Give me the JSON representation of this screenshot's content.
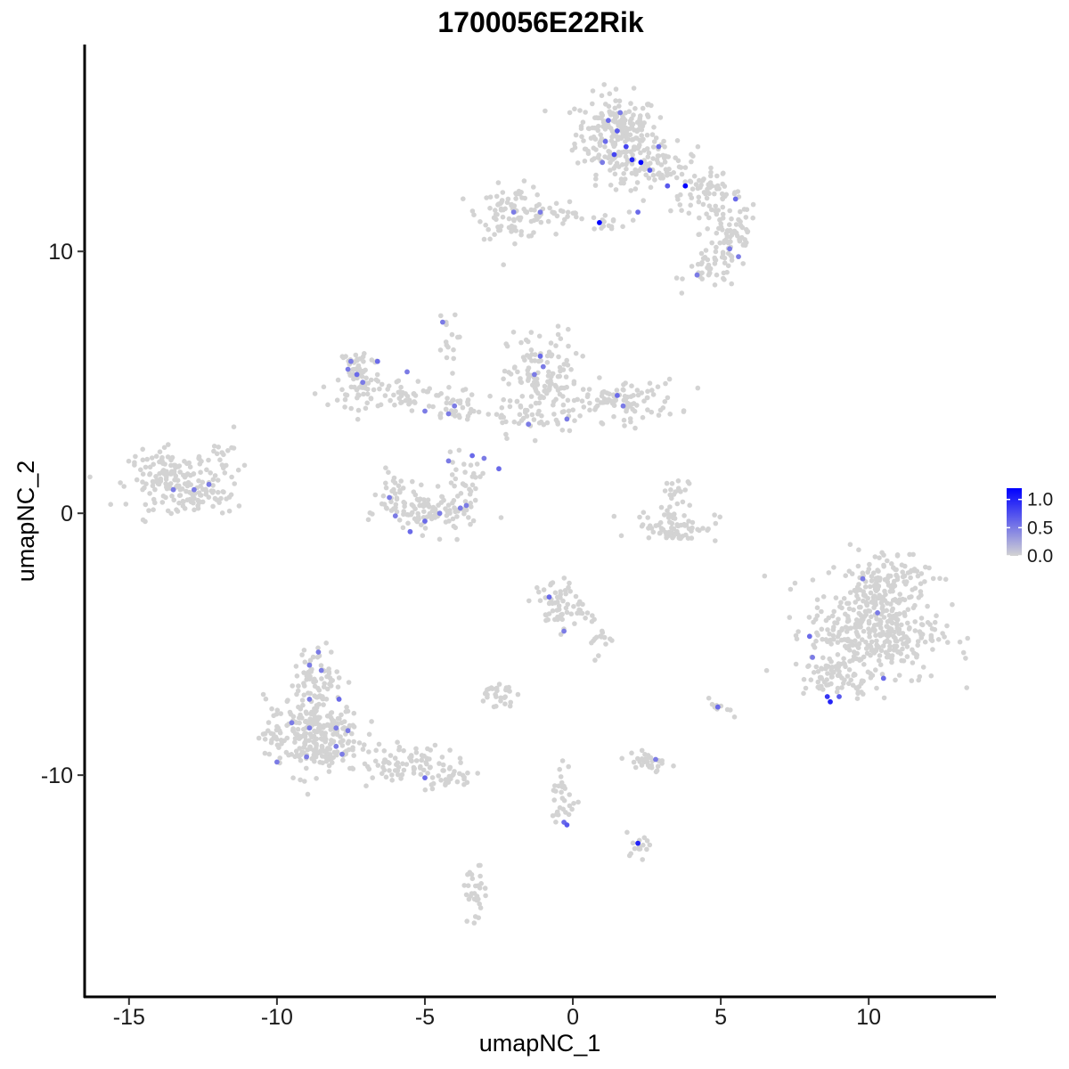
{
  "chart_data": {
    "type": "scatter",
    "title": "1700056E22Rik",
    "xlabel": "umapNC_1",
    "ylabel": "umapNC_2",
    "xlim": [
      -16.5,
      14.3
    ],
    "ylim": [
      -18.5,
      17.9
    ],
    "x_ticks": [
      -15,
      -10,
      -5,
      0,
      5,
      10
    ],
    "x_tick_labels": [
      "-15",
      "-10",
      "-5",
      "0",
      "5",
      "10"
    ],
    "y_ticks": [
      10,
      0,
      -10
    ],
    "y_tick_labels": [
      "10",
      "0",
      "-10"
    ],
    "grid": false,
    "legend": {
      "position": "right",
      "type": "colorbar",
      "labels": [
        "1.0",
        "0.5",
        "0.0"
      ],
      "values": [
        1.0,
        0.5,
        0.0
      ],
      "range": [
        0,
        1.2
      ],
      "color_low": "#d3d3d3",
      "color_high": "#0000ff"
    },
    "clusters": [
      {
        "cx": 1.5,
        "cy": 14.5,
        "sx": 0.7,
        "sy": 0.75,
        "n": 220
      },
      {
        "cx": 3.0,
        "cy": 13.3,
        "sx": 0.6,
        "sy": 0.4,
        "n": 60
      },
      {
        "cx": 4.5,
        "cy": 12.2,
        "sx": 0.6,
        "sy": 0.35,
        "n": 60
      },
      {
        "cx": 5.3,
        "cy": 10.7,
        "sx": 0.5,
        "sy": 0.7,
        "n": 70
      },
      {
        "cx": 4.7,
        "cy": 9.3,
        "sx": 0.45,
        "sy": 0.35,
        "n": 40
      },
      {
        "cx": -2.0,
        "cy": 11.5,
        "sx": 0.6,
        "sy": 0.5,
        "n": 90
      },
      {
        "cx": -0.7,
        "cy": 11.4,
        "sx": 0.6,
        "sy": 0.15,
        "n": 25
      },
      {
        "cx": 1.1,
        "cy": 11.1,
        "sx": 0.4,
        "sy": 0.2,
        "n": 15
      },
      {
        "cx": 1.6,
        "cy": 12.5,
        "sx": 0.4,
        "sy": 0.5,
        "n": 15
      },
      {
        "cx": -7.2,
        "cy": 5.3,
        "sx": 0.35,
        "sy": 0.6,
        "n": 70
      },
      {
        "cx": -5.8,
        "cy": 4.5,
        "sx": 1.0,
        "sy": 0.3,
        "n": 60
      },
      {
        "cx": -4.0,
        "cy": 4.0,
        "sx": 0.45,
        "sy": 0.3,
        "n": 30
      },
      {
        "cx": -4.3,
        "cy": 6.5,
        "sx": 0.2,
        "sy": 0.6,
        "n": 15
      },
      {
        "cx": -1.0,
        "cy": 5.0,
        "sx": 0.6,
        "sy": 1.0,
        "n": 130
      },
      {
        "cx": 1.6,
        "cy": 4.3,
        "sx": 1.0,
        "sy": 0.4,
        "n": 100
      },
      {
        "cx": -2.0,
        "cy": 3.8,
        "sx": 0.5,
        "sy": 0.3,
        "n": 30
      },
      {
        "cx": -13.5,
        "cy": 1.3,
        "sx": 0.75,
        "sy": 0.55,
        "n": 150
      },
      {
        "cx": -12.5,
        "cy": 0.5,
        "sx": 0.45,
        "sy": 0.3,
        "n": 40
      },
      {
        "cx": -11.8,
        "cy": 2.0,
        "sx": 0.3,
        "sy": 0.5,
        "n": 20
      },
      {
        "cx": -4.8,
        "cy": 0.0,
        "sx": 0.8,
        "sy": 0.4,
        "n": 100
      },
      {
        "cx": -6.0,
        "cy": 0.8,
        "sx": 0.3,
        "sy": 0.5,
        "n": 30
      },
      {
        "cx": -3.7,
        "cy": 1.1,
        "sx": 0.3,
        "sy": 0.5,
        "n": 30
      },
      {
        "cx": 3.5,
        "cy": -0.5,
        "sx": 0.7,
        "sy": 0.3,
        "n": 70
      },
      {
        "cx": 3.3,
        "cy": 0.6,
        "sx": 0.3,
        "sy": 0.5,
        "n": 25
      },
      {
        "cx": 10.2,
        "cy": -4.5,
        "sx": 1.1,
        "sy": 1.0,
        "n": 380
      },
      {
        "cx": 10.5,
        "cy": -2.5,
        "sx": 0.8,
        "sy": 0.6,
        "n": 110
      },
      {
        "cx": 9.0,
        "cy": -6.3,
        "sx": 0.6,
        "sy": 0.35,
        "n": 60
      },
      {
        "cx": -0.5,
        "cy": -3.5,
        "sx": 0.4,
        "sy": 0.5,
        "n": 60
      },
      {
        "cx": 0.7,
        "cy": -4.6,
        "sx": 0.3,
        "sy": 0.4,
        "n": 20
      },
      {
        "cx": -8.8,
        "cy": -8.5,
        "sx": 0.8,
        "sy": 0.75,
        "n": 280
      },
      {
        "cx": -8.6,
        "cy": -6.3,
        "sx": 0.4,
        "sy": 0.6,
        "n": 70
      },
      {
        "cx": -5.5,
        "cy": -9.5,
        "sx": 0.8,
        "sy": 0.35,
        "n": 80
      },
      {
        "cx": -4.2,
        "cy": -10.1,
        "sx": 0.4,
        "sy": 0.2,
        "n": 25
      },
      {
        "cx": -2.6,
        "cy": -6.9,
        "sx": 0.3,
        "sy": 0.25,
        "n": 30
      },
      {
        "cx": 2.5,
        "cy": -9.5,
        "sx": 0.35,
        "sy": 0.25,
        "n": 30
      },
      {
        "cx": -0.3,
        "cy": -10.9,
        "sx": 0.2,
        "sy": 0.7,
        "n": 30
      },
      {
        "cx": 2.2,
        "cy": -12.6,
        "sx": 0.25,
        "sy": 0.2,
        "n": 15
      },
      {
        "cx": -3.3,
        "cy": -14.6,
        "sx": 0.2,
        "sy": 0.6,
        "n": 30
      },
      {
        "cx": 5.0,
        "cy": -7.5,
        "sx": 0.2,
        "sy": 0.2,
        "n": 10
      }
    ],
    "expressed_points": [
      {
        "x": 1.2,
        "y": 15.0,
        "v": 0.6
      },
      {
        "x": 1.5,
        "y": 14.6,
        "v": 0.7
      },
      {
        "x": 1.8,
        "y": 14.0,
        "v": 0.8
      },
      {
        "x": 1.1,
        "y": 14.2,
        "v": 0.6
      },
      {
        "x": 2.0,
        "y": 13.5,
        "v": 1.0
      },
      {
        "x": 2.3,
        "y": 13.4,
        "v": 1.3
      },
      {
        "x": 1.4,
        "y": 13.7,
        "v": 0.8
      },
      {
        "x": 2.6,
        "y": 13.1,
        "v": 0.7
      },
      {
        "x": 3.2,
        "y": 12.5,
        "v": 0.7
      },
      {
        "x": 3.8,
        "y": 12.5,
        "v": 1.2
      },
      {
        "x": 2.2,
        "y": 11.5,
        "v": 0.6
      },
      {
        "x": 0.9,
        "y": 11.1,
        "v": 1.3
      },
      {
        "x": 1.6,
        "y": 15.3,
        "v": 0.5
      },
      {
        "x": 1.0,
        "y": 13.4,
        "v": 0.5
      },
      {
        "x": 2.9,
        "y": 14.0,
        "v": 0.6
      },
      {
        "x": 5.5,
        "y": 12.0,
        "v": 0.6
      },
      {
        "x": 5.3,
        "y": 10.1,
        "v": 0.5
      },
      {
        "x": 5.6,
        "y": 9.8,
        "v": 0.5
      },
      {
        "x": 4.2,
        "y": 9.1,
        "v": 0.5
      },
      {
        "x": -2.0,
        "y": 11.5,
        "v": 0.5
      },
      {
        "x": -1.1,
        "y": 11.5,
        "v": 0.5
      },
      {
        "x": -7.5,
        "y": 5.8,
        "v": 0.5
      },
      {
        "x": -7.3,
        "y": 5.3,
        "v": 0.6
      },
      {
        "x": -7.1,
        "y": 5.0,
        "v": 0.5
      },
      {
        "x": -7.6,
        "y": 5.5,
        "v": 0.5
      },
      {
        "x": -6.6,
        "y": 5.8,
        "v": 0.6
      },
      {
        "x": -5.6,
        "y": 5.4,
        "v": 0.5
      },
      {
        "x": -5.0,
        "y": 3.9,
        "v": 0.5
      },
      {
        "x": -4.2,
        "y": 3.8,
        "v": 0.5
      },
      {
        "x": -4.0,
        "y": 4.1,
        "v": 0.5
      },
      {
        "x": -4.4,
        "y": 7.3,
        "v": 0.5
      },
      {
        "x": -1.1,
        "y": 6.0,
        "v": 0.6
      },
      {
        "x": -1.0,
        "y": 5.6,
        "v": 0.5
      },
      {
        "x": -1.3,
        "y": 5.3,
        "v": 0.5
      },
      {
        "x": 1.5,
        "y": 4.5,
        "v": 0.6
      },
      {
        "x": 1.7,
        "y": 4.1,
        "v": 0.5
      },
      {
        "x": -0.2,
        "y": 3.6,
        "v": 0.5
      },
      {
        "x": -1.5,
        "y": 3.4,
        "v": 0.5
      },
      {
        "x": -13.5,
        "y": 0.9,
        "v": 0.5
      },
      {
        "x": -12.8,
        "y": 0.9,
        "v": 0.5
      },
      {
        "x": -12.3,
        "y": 1.1,
        "v": 0.5
      },
      {
        "x": -6.2,
        "y": 0.6,
        "v": 0.5
      },
      {
        "x": -6.0,
        "y": -0.1,
        "v": 0.5
      },
      {
        "x": -5.5,
        "y": -0.7,
        "v": 0.6
      },
      {
        "x": -5.0,
        "y": -0.3,
        "v": 0.6
      },
      {
        "x": -4.5,
        "y": 0.0,
        "v": 0.5
      },
      {
        "x": -3.8,
        "y": 0.2,
        "v": 0.5
      },
      {
        "x": -3.6,
        "y": 0.3,
        "v": 0.5
      },
      {
        "x": -4.2,
        "y": 2.0,
        "v": 0.5
      },
      {
        "x": -3.0,
        "y": 2.1,
        "v": 0.5
      },
      {
        "x": -2.5,
        "y": 1.7,
        "v": 0.6
      },
      {
        "x": -0.8,
        "y": -3.2,
        "v": 0.6
      },
      {
        "x": -0.3,
        "y": -4.5,
        "v": 0.5
      },
      {
        "x": 10.3,
        "y": -3.8,
        "v": 0.5
      },
      {
        "x": 9.8,
        "y": -2.5,
        "v": 0.5
      },
      {
        "x": 8.0,
        "y": -4.7,
        "v": 0.6
      },
      {
        "x": 8.1,
        "y": -5.5,
        "v": 0.5
      },
      {
        "x": 8.6,
        "y": -7.0,
        "v": 0.9
      },
      {
        "x": 8.7,
        "y": -7.2,
        "v": 1.0
      },
      {
        "x": 9.0,
        "y": -7.0,
        "v": 0.7
      },
      {
        "x": 10.5,
        "y": -6.3,
        "v": 0.6
      },
      {
        "x": 4.9,
        "y": -7.4,
        "v": 0.6
      },
      {
        "x": 2.8,
        "y": -9.4,
        "v": 0.5
      },
      {
        "x": -0.2,
        "y": -11.9,
        "v": 0.7
      },
      {
        "x": -0.3,
        "y": -11.8,
        "v": 0.6
      },
      {
        "x": 2.2,
        "y": -12.6,
        "v": 1.0
      },
      {
        "x": -8.9,
        "y": -5.8,
        "v": 0.5
      },
      {
        "x": -8.5,
        "y": -6.0,
        "v": 0.5
      },
      {
        "x": -8.6,
        "y": -5.3,
        "v": 0.5
      },
      {
        "x": -7.9,
        "y": -7.1,
        "v": 0.6
      },
      {
        "x": -8.9,
        "y": -7.1,
        "v": 0.5
      },
      {
        "x": -9.5,
        "y": -8.0,
        "v": 0.5
      },
      {
        "x": -8.9,
        "y": -8.2,
        "v": 0.5
      },
      {
        "x": -8.0,
        "y": -8.2,
        "v": 0.5
      },
      {
        "x": -7.6,
        "y": -8.3,
        "v": 0.5
      },
      {
        "x": -8.0,
        "y": -8.9,
        "v": 0.5
      },
      {
        "x": -7.8,
        "y": -9.2,
        "v": 0.5
      },
      {
        "x": -9.0,
        "y": -9.3,
        "v": 0.5
      },
      {
        "x": -10.0,
        "y": -9.5,
        "v": 0.5
      },
      {
        "x": -5.0,
        "y": -10.1,
        "v": 0.6
      },
      {
        "x": -3.4,
        "y": 2.2,
        "v": 0.6
      }
    ]
  }
}
